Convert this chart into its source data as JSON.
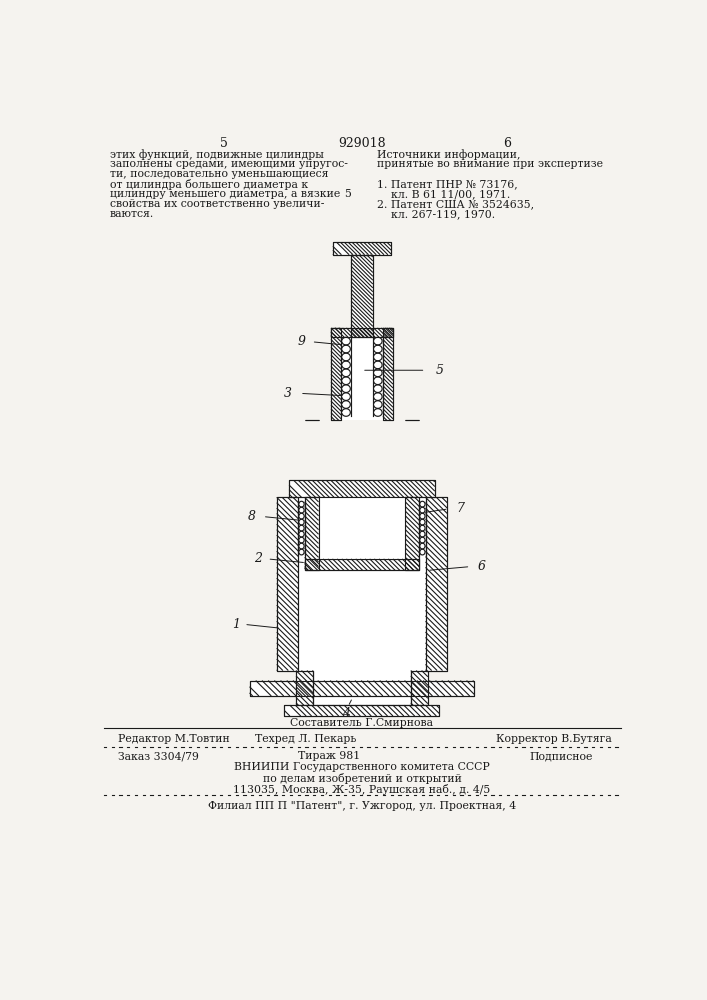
{
  "page_number_left": "5",
  "page_number_center": "929018",
  "page_number_right": "6",
  "footer_composer": "Составитель Г.Смирнова",
  "footer_editor": "Редактор М.Товтин",
  "footer_tech": "Техред Л. Пекарь",
  "footer_corrector": "Корректор В.Бутяга",
  "footer_order": "Заказ 3304/79",
  "footer_print": "Тираж 981",
  "footer_subscription": "Подписное",
  "footer_org1": "ВНИИПИ Государственного комитета СССР",
  "footer_org2": "по делам изобретений и открытий",
  "footer_address": "113035, Москва, Ж-35, Раушская наб., д. 4/5",
  "footer_branch": "Филиал ПП П \"Патент\", г. Ужгород, ул. Проектная, 4",
  "bg_color": "#f5f3ef",
  "text_color": "#1a1a1a",
  "line_color": "#1a1a1a"
}
